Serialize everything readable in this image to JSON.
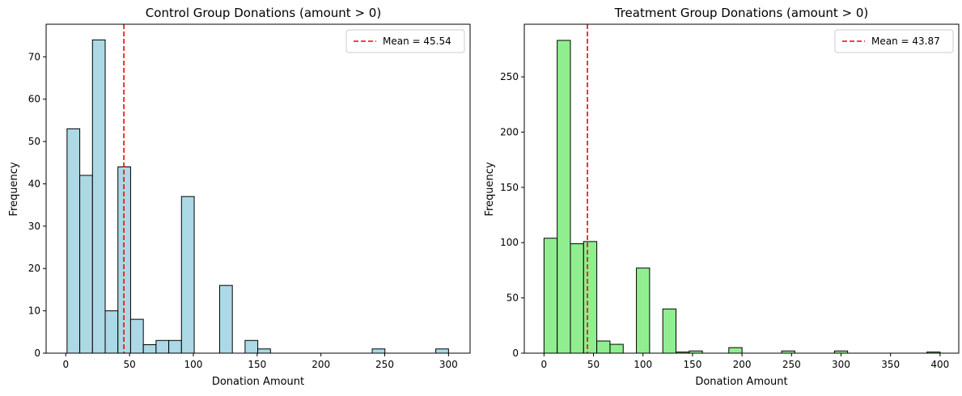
{
  "chart_data": [
    {
      "type": "bar",
      "title": "Control Group Donations (amount > 0)",
      "xlabel": "Donation Amount",
      "ylabel": "Frequency",
      "xlim": [
        -15.4,
        316.9
      ],
      "ylim": [
        0,
        77.7
      ],
      "xticks": [
        0,
        50,
        100,
        150,
        200,
        250,
        300
      ],
      "yticks": [
        0,
        10,
        20,
        30,
        40,
        50,
        60,
        70
      ],
      "bar_color": "#add8e6",
      "edge_color": "#000000",
      "bins": [
        {
          "x0": 1.0,
          "x1": 10.97,
          "count": 53
        },
        {
          "x0": 10.97,
          "x1": 20.93,
          "count": 42
        },
        {
          "x0": 20.93,
          "x1": 30.9,
          "count": 74
        },
        {
          "x0": 30.9,
          "x1": 40.87,
          "count": 10
        },
        {
          "x0": 40.87,
          "x1": 50.83,
          "count": 44
        },
        {
          "x0": 50.83,
          "x1": 60.8,
          "count": 8
        },
        {
          "x0": 60.8,
          "x1": 70.77,
          "count": 2
        },
        {
          "x0": 70.77,
          "x1": 80.73,
          "count": 3
        },
        {
          "x0": 80.73,
          "x1": 90.7,
          "count": 3
        },
        {
          "x0": 90.7,
          "x1": 100.67,
          "count": 37
        },
        {
          "x0": 120.6,
          "x1": 130.57,
          "count": 16
        },
        {
          "x0": 140.53,
          "x1": 150.5,
          "count": 3
        },
        {
          "x0": 150.5,
          "x1": 160.47,
          "count": 1
        },
        {
          "x0": 240.2,
          "x1": 250.17,
          "count": 1
        },
        {
          "x0": 290.03,
          "x1": 300.0,
          "count": 1
        }
      ],
      "mean": {
        "value": 45.54,
        "label": "Mean = 45.54",
        "color": "#ff0000"
      },
      "legend_position": "upper right",
      "grid": false
    },
    {
      "type": "bar",
      "title": "Treatment Group Donations (amount > 0)",
      "xlabel": "Donation Amount",
      "ylabel": "Frequency",
      "xlim": [
        -19.9,
        418.9
      ],
      "ylim": [
        0,
        297.6
      ],
      "xticks": [
        0,
        50,
        100,
        150,
        200,
        250,
        300,
        350,
        400
      ],
      "yticks": [
        0,
        50,
        100,
        150,
        200,
        250
      ],
      "bar_color": "#90ee90",
      "edge_color": "#000000",
      "bins": [
        {
          "x0": 0.0,
          "x1": 13.33,
          "count": 104
        },
        {
          "x0": 13.33,
          "x1": 26.67,
          "count": 283
        },
        {
          "x0": 26.67,
          "x1": 40.0,
          "count": 99
        },
        {
          "x0": 40.0,
          "x1": 53.33,
          "count": 101
        },
        {
          "x0": 53.33,
          "x1": 66.67,
          "count": 11
        },
        {
          "x0": 66.67,
          "x1": 80.0,
          "count": 8
        },
        {
          "x0": 93.33,
          "x1": 106.67,
          "count": 77
        },
        {
          "x0": 120.0,
          "x1": 133.33,
          "count": 40
        },
        {
          "x0": 133.33,
          "x1": 146.67,
          "count": 1
        },
        {
          "x0": 146.67,
          "x1": 160.0,
          "count": 2
        },
        {
          "x0": 186.67,
          "x1": 200.0,
          "count": 5
        },
        {
          "x0": 240.0,
          "x1": 253.33,
          "count": 2
        },
        {
          "x0": 293.33,
          "x1": 306.67,
          "count": 2
        },
        {
          "x0": 386.67,
          "x1": 400.0,
          "count": 1
        }
      ],
      "mean": {
        "value": 43.87,
        "label": "Mean = 43.87",
        "color": "#ff0000"
      },
      "legend_position": "upper right",
      "grid": false
    }
  ]
}
